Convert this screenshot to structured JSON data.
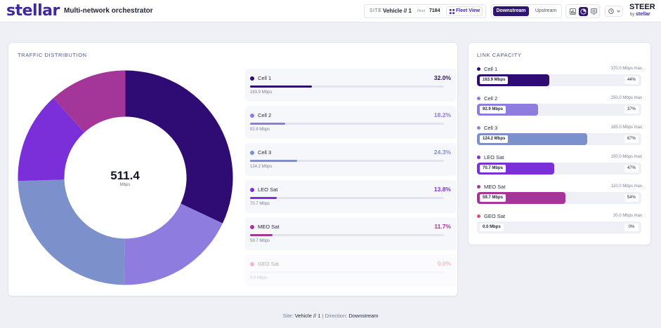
{
  "header": {
    "logo": "stellar",
    "app_title": "Multi-network orchestrator",
    "site_label": "SITE",
    "site_value": "Vehicle // 1",
    "fleet_label": "Fleet",
    "fleet_value": "7184",
    "fleet_button": "Fleet View",
    "direction_options": [
      "Downstream",
      "Upstream"
    ],
    "direction_selected": "Downstream",
    "view_icons": [
      "bar-chart-icon",
      "pie-chart-icon",
      "list-icon"
    ],
    "active_view": "pie-chart-icon",
    "history_icon": "clock-icon",
    "brand": "STEER",
    "brand_by": "by",
    "brand_by_name": "stellar"
  },
  "traffic": {
    "title": "TRAFFIC DISTRIBUTION",
    "total": "511.4",
    "total_unit": "Mbps",
    "legend": [
      {
        "name": "Cell 1",
        "pct": "32.0%",
        "value": "163.9 Mbps",
        "fraction": 0.32,
        "color": "#2e0c73"
      },
      {
        "name": "Cell 2",
        "pct": "18.2%",
        "value": "92.9 Mbps",
        "fraction": 0.182,
        "color": "#8e7cdf"
      },
      {
        "name": "Cell 3",
        "pct": "24.3%",
        "value": "124.2 Mbps",
        "fraction": 0.243,
        "color": "#7c90cb"
      },
      {
        "name": "LEO Sat",
        "pct": "13.8%",
        "value": "70.7 Mbps",
        "fraction": 0.138,
        "color": "#7b2fd9"
      },
      {
        "name": "MEO Sat",
        "pct": "11.7%",
        "value": "59.7 Mbps",
        "fraction": 0.117,
        "color": "#a43599"
      },
      {
        "name": "GEO Sat",
        "pct": "0.0%",
        "value": "0.0 Mbps",
        "fraction": 0.0,
        "color": "#e0506e"
      }
    ]
  },
  "capacity": {
    "title": "LINK CAPACITY",
    "rows": [
      {
        "name": "Cell 1",
        "max": "370.0 Mbps max",
        "mbps": "163.9 Mbps",
        "pct": "44%",
        "fraction": 0.44,
        "color": "#2e0c73"
      },
      {
        "name": "Cell 2",
        "max": "250.0 Mbps max",
        "mbps": "92.9 Mbps",
        "pct": "37%",
        "fraction": 0.37,
        "color": "#8e7cdf"
      },
      {
        "name": "Cell 3",
        "max": "185.0 Mbps max",
        "mbps": "124.2 Mbps",
        "pct": "67%",
        "fraction": 0.67,
        "color": "#7c90cb"
      },
      {
        "name": "LEO Sat",
        "max": "150.0 Mbps max",
        "mbps": "70.7 Mbps",
        "pct": "47%",
        "fraction": 0.47,
        "color": "#7b2fd9"
      },
      {
        "name": "MEO Sat",
        "max": "110.0 Mbps max",
        "mbps": "59.7 Mbps",
        "pct": "54%",
        "fraction": 0.54,
        "color": "#a43599"
      },
      {
        "name": "GEO Sat",
        "max": "20.0 Mbps max",
        "mbps": "0.0 Mbps",
        "pct": "0%",
        "fraction": 0.0,
        "color": "#e0506e"
      }
    ]
  },
  "footer": {
    "site_label": "Site:",
    "site_value": "Vehicle // 1",
    "separator": "|",
    "direction_label": "Direction:",
    "direction_value": "Downstream"
  }
}
